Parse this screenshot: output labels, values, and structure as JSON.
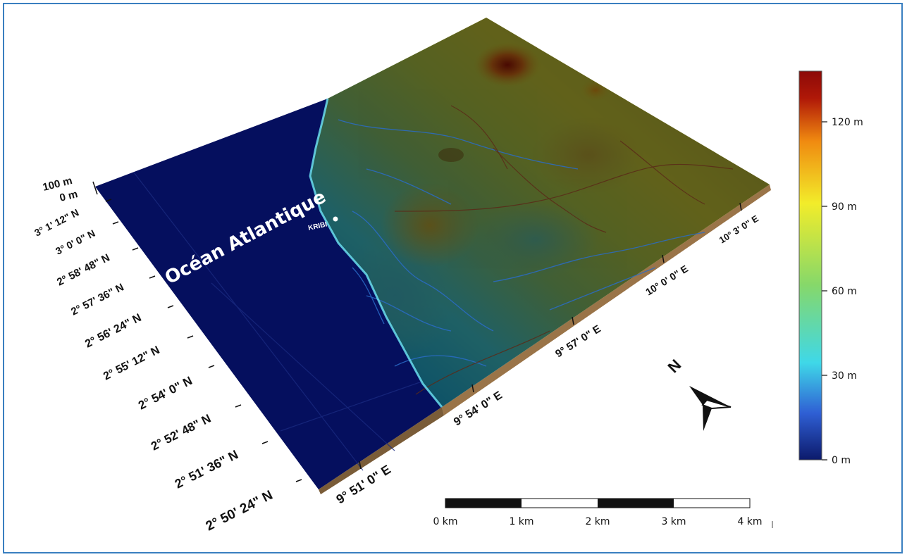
{
  "map": {
    "ocean_label": "Océan Atlantique",
    "city_label": "KRIBI",
    "north_label": "N",
    "elevation_axis": [
      "100 m",
      "0 m"
    ],
    "lat_labels": [
      "3° 1' 12\" N",
      "3° 0' 0\" N",
      "2° 58' 48\" N",
      "2° 57' 36\" N",
      "2° 56' 24\" N",
      "2° 55' 12\" N",
      "2° 54' 0\" N",
      "2° 52' 48\" N",
      "2° 51' 36\" N",
      "2° 50' 24\" N"
    ],
    "lon_labels": [
      "9° 51' 0\" E",
      "9° 54' 0\" E",
      "9° 57' 0\" E",
      "10° 0' 0\" E",
      "10° 3' 0\" E"
    ]
  },
  "legend": {
    "ticks": [
      "120 m",
      "90 m",
      "60 m",
      "30 m",
      "0 m"
    ],
    "values": [
      120,
      90,
      60,
      30,
      0
    ],
    "max_value": 138,
    "colors": [
      "#0c1a6b",
      "#2f5fd4",
      "#3fd8e8",
      "#86d86a",
      "#f2ec2a",
      "#f08a10",
      "#b01808",
      "#8c0a08"
    ]
  },
  "scalebar": {
    "labels": [
      "0 km",
      "1 km",
      "2 km",
      "3 km",
      "4 km"
    ]
  },
  "colors": {
    "ocean": "#050f5e",
    "frame": "#3a7fc0",
    "plinth": "#9a7448"
  }
}
